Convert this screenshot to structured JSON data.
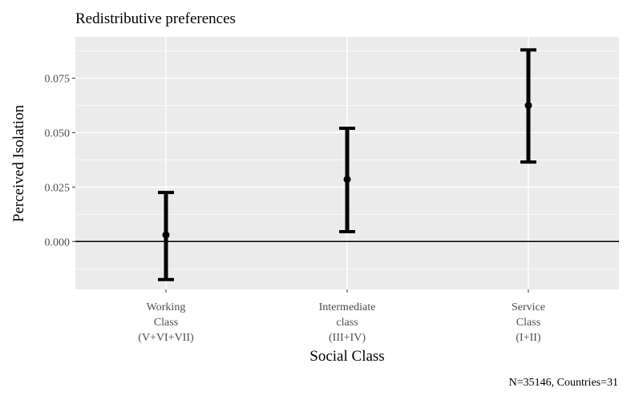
{
  "chart_data": {
    "type": "errorbar",
    "title": "Redistributive preferences",
    "xlabel": "Social Class",
    "ylabel": "Perceived Isolation",
    "caption": "N=35146, Countries=31",
    "categories": [
      [
        "Working",
        "Class",
        "(V+VI+VII)"
      ],
      [
        "Intermediate",
        "class",
        "(III+IV)"
      ],
      [
        "Service",
        "Class",
        "(I+II)"
      ]
    ],
    "points": [
      {
        "estimate": 0.003,
        "lower": -0.0175,
        "upper": 0.0225
      },
      {
        "estimate": 0.0285,
        "lower": 0.0045,
        "upper": 0.052
      },
      {
        "estimate": 0.0625,
        "lower": 0.0365,
        "upper": 0.088
      }
    ],
    "yticks": [
      0.0,
      0.025,
      0.05,
      0.075
    ],
    "ytick_labels": [
      "0.000",
      "0.025",
      "0.050",
      "0.075"
    ],
    "ylim": [
      -0.022,
      0.094
    ],
    "reference_line": 0,
    "grid": true,
    "legend": "none",
    "colors": {
      "panel": "#ebebeb",
      "grid": "#ffffff",
      "marks": "#000000"
    }
  }
}
